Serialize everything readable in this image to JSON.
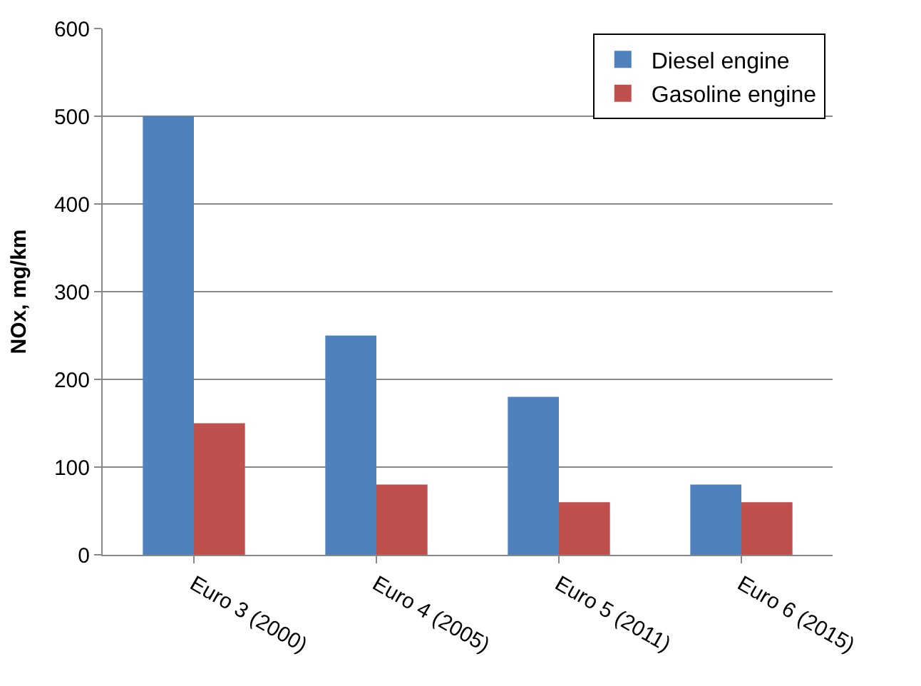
{
  "chart_data": {
    "type": "bar",
    "ylabel": "NOx, mg/km",
    "categories": [
      "Euro 3 (2000)",
      "Euro 4 (2005)",
      "Euro 5 (2011)",
      "Euro 6 (2015)"
    ],
    "series": [
      {
        "name": "Diesel engine",
        "color": "#4f81bd",
        "values": [
          500,
          250,
          180,
          80
        ]
      },
      {
        "name": "Gasoline engine",
        "color": "#c0504d",
        "values": [
          150,
          80,
          60,
          60
        ]
      }
    ],
    "ylim": [
      0,
      600
    ],
    "yticks": [
      0,
      100,
      200,
      300,
      400,
      500,
      600
    ],
    "grid": "y",
    "legend": "top right"
  }
}
